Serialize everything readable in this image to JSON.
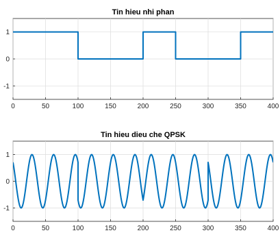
{
  "chart_data": [
    {
      "type": "line",
      "title": "Tin hieu nhi phan",
      "xlim": [
        0,
        400
      ],
      "ylim": [
        -1.5,
        1.5
      ],
      "xticks": [
        0,
        50,
        100,
        150,
        200,
        250,
        300,
        350,
        400
      ],
      "yticks": [
        -1,
        0,
        1
      ],
      "grid": true,
      "line_color": "#0072BD",
      "series": [
        {
          "x": [
            0,
            100,
            100,
            200,
            200,
            250,
            250,
            350,
            350,
            400
          ],
          "y": [
            1,
            1,
            0,
            0,
            1,
            1,
            0,
            0,
            1,
            1
          ]
        }
      ]
    },
    {
      "type": "line",
      "title": "Tin hieu dieu che QPSK",
      "xlim": [
        0,
        400
      ],
      "ylim": [
        -1.5,
        1.5
      ],
      "xticks": [
        0,
        50,
        100,
        150,
        200,
        250,
        300,
        350,
        400
      ],
      "yticks": [
        -1,
        0,
        1
      ],
      "grid": true,
      "line_color": "#0072BD",
      "series": [
        {
          "samples_per_unit": 1,
          "cycles_per_100": 3,
          "segment_length": 100,
          "segment_phase_deg": [
            45,
            135,
            225,
            45
          ]
        }
      ]
    }
  ]
}
